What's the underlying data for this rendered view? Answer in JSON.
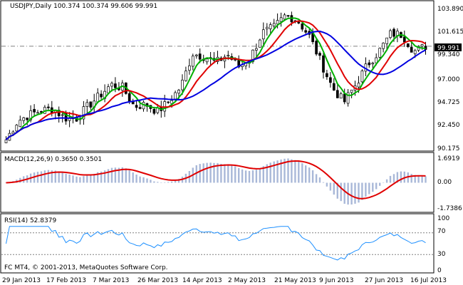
{
  "symbol_header": "USDJPY,Daily  100.374 100.374 99.606 99.991",
  "price_axis": [
    "103.890",
    "101.615",
    "99.340",
    "97.000",
    "94.725",
    "92.450",
    "90.175"
  ],
  "current_price": "99.991",
  "macd_header": "MACD(12,26,9) 0.3650 0.3501",
  "macd_axis": [
    "1.6919",
    "0.00",
    "-1.7386"
  ],
  "rsi_header": "RSI(14) 52.8379",
  "rsi_axis": [
    "100",
    "70",
    "30",
    "0"
  ],
  "copyright": "FC MT4, © 2001-2013, MetaQuotes Software Corp.",
  "date_labels": [
    "29 Jan 2013",
    "17 Feb 2013",
    "7 Mar 2013",
    "26 Mar 2013",
    "14 Apr 2013",
    "2 May 2013",
    "21 May 2013",
    "9 Jun 2013",
    "27 Jun 2013",
    "16 Jul 2013"
  ],
  "colors": {
    "ma_fast": "#00b000",
    "ma_mid": "#e00000",
    "ma_slow": "#0000e0",
    "macd_hist": "#a9b8d8",
    "macd_signal": "#e00000",
    "rsi": "#1e90ff",
    "grid_dash": "#808080"
  },
  "chart_data": {
    "type": "candlestick",
    "panels": [
      {
        "name": "USDJPY,Daily",
        "ylim": [
          90.175,
          103.89
        ],
        "last_price": 99.991,
        "series": [
          {
            "name": "price_close_approx",
            "values": [
              91.0,
              92.8,
              93.4,
              93.8,
              94.0,
              93.1,
              93.0,
              94.2,
              95.2,
              96.3,
              96.0,
              94.2,
              94.4,
              93.7,
              94.7,
              96.1,
              99.3,
              99.0,
              98.4,
              99.2,
              98.0,
              99.0,
              101.3,
              101.8,
              103.0,
              102.5,
              101.0,
              98.5,
              96.0,
              94.6,
              96.3,
              98.2,
              99.5,
              101.2,
              101.1,
              99.5,
              99.99
            ]
          }
        ]
      },
      {
        "name": "MACD(12,26,9)",
        "ylim": [
          -1.7386,
          1.6919
        ],
        "main": 0.365,
        "signal": 0.3501
      },
      {
        "name": "RSI(14)",
        "ylim": [
          0,
          100
        ],
        "value": 52.8379
      }
    ]
  }
}
